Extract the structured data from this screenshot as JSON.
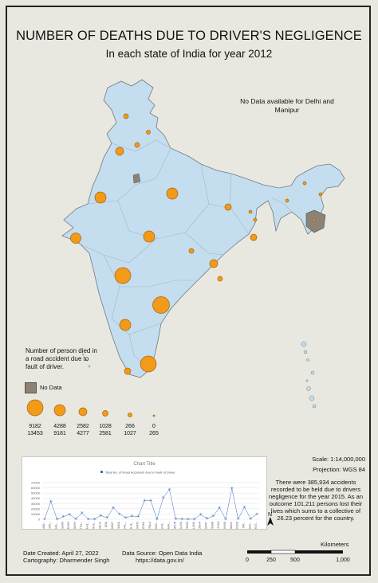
{
  "header": {
    "title": "NUMBER OF DEATHS DUE TO DRIVER'S NEGLIGENCE",
    "subtitle": "In each state of India for year 2012"
  },
  "map": {
    "no_data_note": "No Data available for Delhi and Manipur",
    "land_color": "#c4def0",
    "border_color": "#b0b0b0",
    "symbol_color": "#f29a1a",
    "nodata_color": "#8c8276",
    "frame_background": "#e9e8e0"
  },
  "legend": {
    "title": "Number of person died in a road accident due to fault of driver.",
    "no_data_label": "No Data",
    "classes": [
      {
        "upper": "9182",
        "lower": "13453"
      },
      {
        "upper": "4288",
        "lower": "9181"
      },
      {
        "upper": "2582",
        "lower": "4277"
      },
      {
        "upper": "1028",
        "lower": "2581"
      },
      {
        "upper": "266",
        "lower": "1027"
      },
      {
        "upper": "0",
        "lower": "265"
      }
    ]
  },
  "chart_data": {
    "type": "line",
    "title": "Chart Title",
    "legend": [
      "Total No. of Road Accidents due to Fault of Driver."
    ],
    "ylim": [
      0,
      70000
    ],
    "yticks": [
      "70000",
      "60000",
      "50000",
      "40000",
      "30000",
      "20000",
      "10000",
      "0"
    ],
    "categories": [
      "ANDAMAN...",
      "ANDHRA...",
      "ARUNACHAL...",
      "ASSAM",
      "BIHAR",
      "CHANDIGARH",
      "CHHATTIS...",
      "DADRA &...",
      "DAMAN &...",
      "DELHI",
      "GOA",
      "GUJARAT",
      "HARYANA",
      "HIMACHAL...",
      "JAMMU &...",
      "JHARKHAND",
      "KARNATAKA",
      "KERALA",
      "LAKSHADW...",
      "MADHYA...",
      "MAHARASH...",
      "MANIPUR",
      "MEGHALAYA",
      "MIZORAM",
      "NAGALAND",
      "ODISHA",
      "PUDUCHERRY",
      "PUNJAB",
      "RAJASTHAN",
      "SIKKIM",
      "TAMIL NADU",
      "TRIPURA",
      "UTTAR...",
      "UTTARAKH...",
      "WEST..."
    ],
    "series": [
      {
        "name": "Total No. of Road Accidents due to Fault of Driver.",
        "values": [
          300,
          34000,
          200,
          5000,
          9000,
          400,
          12000,
          100,
          100,
          7000,
          3000,
          22000,
          10000,
          3000,
          6000,
          5000,
          36000,
          36000,
          0,
          41000,
          57000,
          600,
          300,
          100,
          100,
          9000,
          1500,
          6000,
          22000,
          200,
          59000,
          600,
          23000,
          1000,
          10000
        ]
      }
    ]
  },
  "map_info": {
    "scale": "Scale: 1:14,000,000",
    "projection": "Projection: WGS 84",
    "description": "There were 385,934 accidents recorded to be held due to drivers negligence for the year 2015. As an outcome 101,211 persons lost their lives which sums to a collective of 26.23 percent for the country.",
    "north_label": "N",
    "scalebar_unit": "Kilometers",
    "scalebar_ticks": [
      "0",
      "250",
      "500",
      "1,000"
    ]
  },
  "footer": {
    "date_created": "Date Created: April 27, 2022",
    "cartography": "Cartography: Dharmender Singh",
    "source": "Data Source: Open Data India",
    "source_url": "https://data.gov.in/"
  }
}
